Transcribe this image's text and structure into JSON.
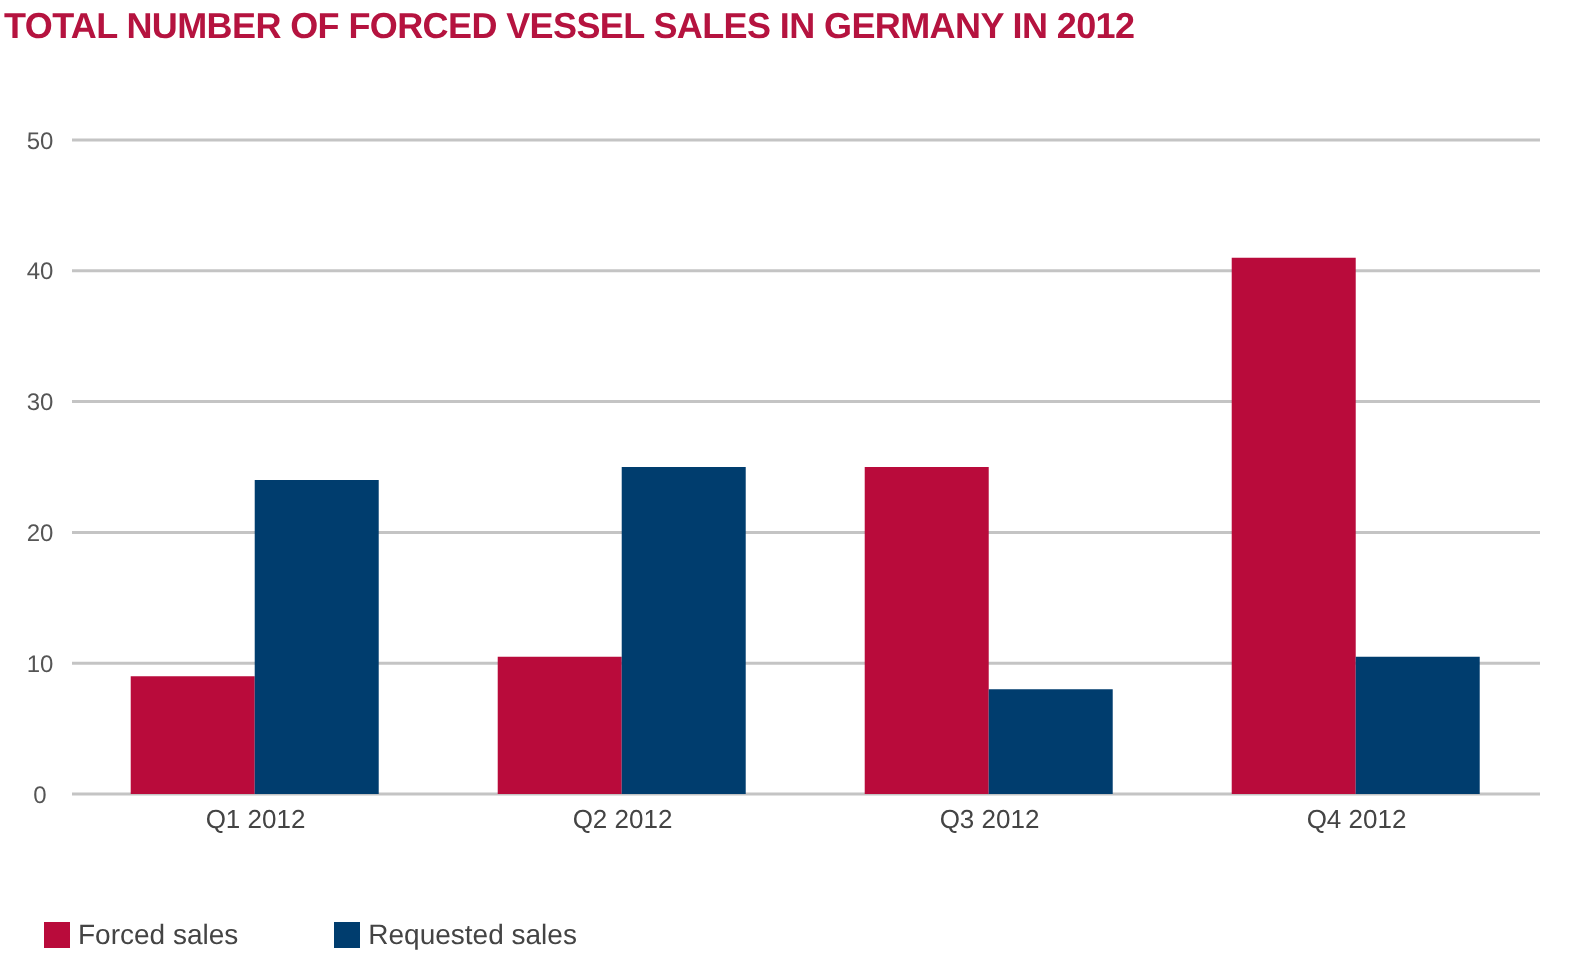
{
  "chart_data": {
    "type": "bar",
    "title": "TOTAL NUMBER OF FORCED VESSEL SALES IN GERMANY IN 2012",
    "categories": [
      "Q1 2012",
      "Q2 2012",
      "Q3 2012",
      "Q4 2012"
    ],
    "series": [
      {
        "name": "Forced sales",
        "color": "#b90b3b",
        "values": [
          9,
          10.5,
          25,
          41
        ]
      },
      {
        "name": "Requested sales",
        "color": "#003d6e",
        "values": [
          24,
          25,
          8,
          10.5
        ]
      }
    ],
    "ylim": [
      0,
      50
    ],
    "yticks": [
      0,
      10,
      20,
      30,
      40,
      50
    ],
    "grid": "y",
    "legend": "bottom left"
  }
}
